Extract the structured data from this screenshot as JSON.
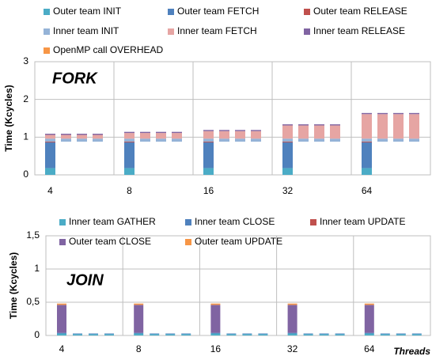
{
  "chart_data": [
    {
      "type": "bar",
      "stacked": true,
      "title": "FORK",
      "ylabel": "Time (Kcycles)",
      "categories": [
        "4",
        null,
        null,
        null,
        "8",
        null,
        null,
        null,
        "16",
        null,
        null,
        null,
        "32",
        null,
        null,
        null,
        "64",
        null,
        null,
        null
      ],
      "series": [
        {
          "name": "Outer team INIT",
          "color": "#4bacc6",
          "values": [
            0.18,
            null,
            null,
            null,
            0.18,
            null,
            null,
            null,
            0.18,
            null,
            null,
            null,
            0.18,
            null,
            null,
            null,
            0.18,
            null,
            null,
            null
          ]
        },
        {
          "name": "Outer team FETCH",
          "color": "#4f81bd",
          "values": [
            0.68,
            null,
            null,
            null,
            0.68,
            null,
            null,
            null,
            0.68,
            null,
            null,
            null,
            0.68,
            null,
            null,
            null,
            0.68,
            null,
            null,
            null
          ]
        },
        {
          "name": "Outer team RELEASE",
          "color": "#c0504d",
          "values": [
            0.02,
            null,
            null,
            null,
            0.02,
            null,
            null,
            null,
            0.02,
            null,
            null,
            null,
            0.02,
            null,
            null,
            null,
            0.02,
            null,
            null,
            null
          ]
        },
        {
          "name": "Inner team INIT",
          "color": "#95b3d7",
          "values": [
            0.08,
            0.08,
            0.08,
            0.08,
            0.08,
            0.08,
            0.08,
            0.08,
            0.08,
            0.08,
            0.08,
            0.08,
            0.08,
            0.08,
            0.08,
            0.08,
            0.08,
            0.08,
            0.08,
            0.08
          ]
        },
        {
          "name": "Inner team FETCH",
          "color": "#e6a5a3",
          "values": [
            0.1,
            0.1,
            0.1,
            0.1,
            0.15,
            0.15,
            0.15,
            0.15,
            0.2,
            0.2,
            0.2,
            0.2,
            0.35,
            0.35,
            0.35,
            0.35,
            0.65,
            0.65,
            0.65,
            0.65
          ]
        },
        {
          "name": "Inner team RELEASE",
          "color": "#8064a2",
          "values": [
            0.03,
            0.03,
            0.03,
            0.03,
            0.03,
            0.03,
            0.03,
            0.03,
            0.03,
            0.03,
            0.03,
            0.03,
            0.03,
            0.03,
            0.03,
            0.03,
            0.03,
            0.03,
            0.03,
            0.03
          ]
        },
        {
          "name": "OpenMP call OVERHEAD",
          "color": "#f79646",
          "values": [
            0,
            0,
            0,
            0,
            0,
            0,
            0,
            0,
            0,
            0,
            0,
            0,
            0,
            0,
            0,
            0,
            0,
            0,
            0,
            0
          ]
        }
      ],
      "ylim": [
        0,
        3
      ],
      "yticks": [
        0,
        1,
        2,
        3
      ],
      "grid": true
    },
    {
      "type": "bar",
      "stacked": true,
      "title": "JOIN",
      "ylabel": "Time (Kcycles)",
      "xlabel": "Threads",
      "categories": [
        "4",
        null,
        null,
        null,
        "8",
        null,
        null,
        null,
        "16",
        null,
        null,
        null,
        "32",
        null,
        null,
        null,
        "64",
        null,
        null,
        null
      ],
      "series": [
        {
          "name": "Inner team GATHER",
          "color": "#4bacc6",
          "values": [
            0.03,
            0.02,
            0.02,
            0.02,
            0.03,
            0.02,
            0.02,
            0.02,
            0.03,
            0.02,
            0.02,
            0.02,
            0.03,
            0.02,
            0.02,
            0.02,
            0.03,
            0.02,
            0.02,
            0.02
          ]
        },
        {
          "name": "Inner team CLOSE",
          "color": "#4f81bd",
          "values": [
            0.01,
            0.01,
            0.01,
            0.01,
            0.01,
            0.01,
            0.01,
            0.01,
            0.01,
            0.01,
            0.01,
            0.01,
            0.01,
            0.01,
            0.01,
            0.01,
            0.01,
            0.01,
            0.01,
            0.01
          ]
        },
        {
          "name": "Inner team UPDATE",
          "color": "#c0504d",
          "values": [
            0,
            0,
            0,
            0,
            0,
            0,
            0,
            0,
            0,
            0,
            0,
            0,
            0,
            0,
            0,
            0,
            0,
            0,
            0,
            0
          ]
        },
        {
          "name": "Outer team CLOSE",
          "color": "#8064a2",
          "values": [
            0.42,
            null,
            null,
            null,
            0.42,
            null,
            null,
            null,
            0.42,
            null,
            null,
            null,
            0.42,
            null,
            null,
            null,
            0.42,
            null,
            null,
            null
          ]
        },
        {
          "name": "Outer team UPDATE",
          "color": "#f79646",
          "values": [
            0.02,
            null,
            null,
            null,
            0.02,
            null,
            null,
            null,
            0.02,
            null,
            null,
            null,
            0.02,
            null,
            null,
            null,
            0.02,
            null,
            null,
            null
          ]
        }
      ],
      "ylim": [
        0,
        1.5
      ],
      "yticks": [
        0,
        {
          "value": 0.5,
          "label": "0,5"
        },
        1,
        {
          "value": 1.5,
          "label": "1,5"
        }
      ],
      "grid": true
    }
  ]
}
